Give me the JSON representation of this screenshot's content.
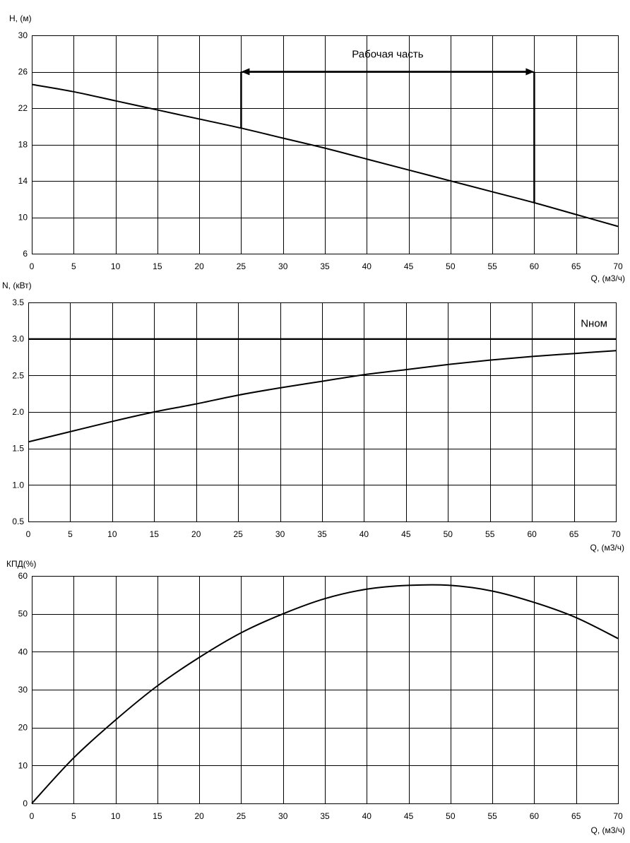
{
  "chart_data": [
    {
      "type": "line",
      "ylabel": "H, (м)",
      "xlabel": "Q, (м3/ч)",
      "xlim": [
        0,
        70
      ],
      "ylim": [
        6,
        30
      ],
      "xticks": [
        0,
        5,
        10,
        15,
        20,
        25,
        30,
        35,
        40,
        45,
        50,
        55,
        60,
        65,
        70
      ],
      "yticks": [
        6,
        10,
        14,
        18,
        22,
        26,
        30
      ],
      "ytick_labels": [
        "6",
        "10",
        "14",
        "18",
        "22",
        "26",
        "30"
      ],
      "grid": true,
      "series": [
        {
          "x": [
            0,
            5,
            10,
            15,
            20,
            25,
            30,
            35,
            40,
            45,
            50,
            55,
            60,
            65,
            70
          ],
          "values": [
            24.6,
            23.8,
            22.8,
            21.8,
            20.8,
            19.8,
            18.7,
            17.6,
            16.4,
            15.2,
            14.0,
            12.8,
            11.6,
            10.3,
            9.0
          ]
        }
      ],
      "annotation": {
        "text": "Рабочая часть",
        "x_from": 25,
        "x_to": 60,
        "y": 26,
        "drop_from_x": 25,
        "drop_from_y": 19.8,
        "drop_to_x": 60,
        "drop_to_y": 11.6
      }
    },
    {
      "type": "line",
      "ylabel": "N, (кВт)",
      "xlabel": "Q, (м3/ч)",
      "xlim": [
        0,
        70
      ],
      "ylim": [
        0.5,
        3.5
      ],
      "xticks": [
        0,
        5,
        10,
        15,
        20,
        25,
        30,
        35,
        40,
        45,
        50,
        55,
        60,
        65,
        70
      ],
      "yticks": [
        0.5,
        1.0,
        1.5,
        2.0,
        2.5,
        3.0,
        3.5
      ],
      "ytick_labels": [
        "0.5",
        "1.0",
        "1.5",
        "2.0",
        "2.5",
        "3.0",
        "3.5"
      ],
      "grid": true,
      "series": [
        {
          "x": [
            0,
            5,
            10,
            15,
            20,
            25,
            30,
            35,
            40,
            45,
            50,
            55,
            60,
            65,
            70
          ],
          "values": [
            1.59,
            1.73,
            1.87,
            2.0,
            2.11,
            2.23,
            2.33,
            2.42,
            2.51,
            2.58,
            2.65,
            2.71,
            2.76,
            2.8,
            2.84
          ]
        },
        {
          "name": "Nном",
          "x": [
            0,
            70
          ],
          "values": [
            3.0,
            3.0
          ]
        }
      ]
    },
    {
      "type": "line",
      "ylabel": "КПД(%)",
      "xlabel": "Q, (м3/ч)",
      "xlim": [
        0,
        70
      ],
      "ylim": [
        0,
        60
      ],
      "xticks": [
        0,
        5,
        10,
        15,
        20,
        25,
        30,
        35,
        40,
        45,
        50,
        55,
        60,
        65,
        70
      ],
      "yticks": [
        0,
        10,
        20,
        30,
        40,
        50,
        60
      ],
      "ytick_labels": [
        "0",
        "10",
        "20",
        "30",
        "40",
        "50",
        "60"
      ],
      "grid": true,
      "series": [
        {
          "x": [
            0,
            5,
            10,
            15,
            20,
            25,
            30,
            35,
            40,
            45,
            50,
            55,
            60,
            65,
            70
          ],
          "values": [
            0,
            12,
            22,
            31,
            38.5,
            45,
            50,
            54,
            56.5,
            57.5,
            57.5,
            56,
            53,
            49,
            43.5
          ]
        }
      ]
    }
  ]
}
